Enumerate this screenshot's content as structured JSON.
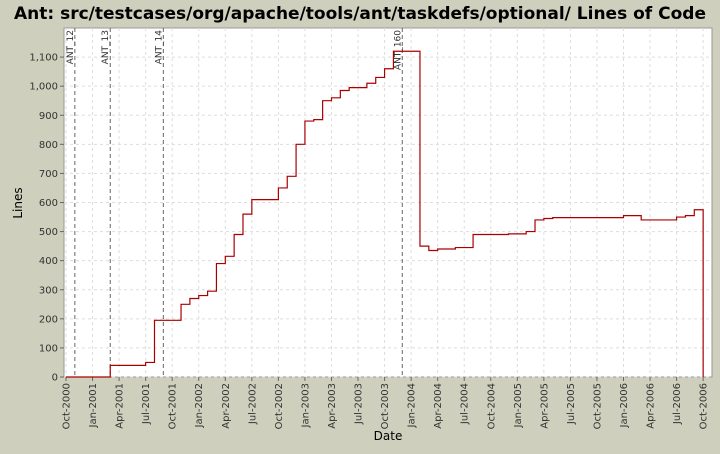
{
  "chart_data": {
    "type": "step",
    "title": "Ant: src/testcases/org/apache/tools/ant/taskdefs/optional/ Lines of Code",
    "xlabel": "Date",
    "ylabel": "Lines",
    "xlim": [
      "2000-10",
      "2006-11"
    ],
    "ylim": [
      0,
      1200
    ],
    "yticks": [
      0,
      100,
      200,
      300,
      400,
      500,
      600,
      700,
      800,
      900,
      {
        "value": 1000,
        "label": "1,000"
      },
      {
        "value": 1100,
        "label": "1,100"
      }
    ],
    "xticks": [
      {
        "value": "2000-10",
        "label": "Oct-2000"
      },
      {
        "value": "2001-01",
        "label": "Jan-2001"
      },
      {
        "value": "2001-04",
        "label": "Apr-2001"
      },
      {
        "value": "2001-07",
        "label": "Jul-2001"
      },
      {
        "value": "2001-10",
        "label": "Oct-2001"
      },
      {
        "value": "2002-01",
        "label": "Jan-2002"
      },
      {
        "value": "2002-04",
        "label": "Apr-2002"
      },
      {
        "value": "2002-07",
        "label": "Jul-2002"
      },
      {
        "value": "2002-10",
        "label": "Oct-2002"
      },
      {
        "value": "2003-01",
        "label": "Jan-2003"
      },
      {
        "value": "2003-04",
        "label": "Apr-2003"
      },
      {
        "value": "2003-07",
        "label": "Jul-2003"
      },
      {
        "value": "2003-10",
        "label": "Oct-2003"
      },
      {
        "value": "2004-01",
        "label": "Jan-2004"
      },
      {
        "value": "2004-04",
        "label": "Apr-2004"
      },
      {
        "value": "2004-07",
        "label": "Jul-2004"
      },
      {
        "value": "2004-10",
        "label": "Oct-2004"
      },
      {
        "value": "2005-01",
        "label": "Jan-2005"
      },
      {
        "value": "2005-04",
        "label": "Apr-2005"
      },
      {
        "value": "2005-07",
        "label": "Jul-2005"
      },
      {
        "value": "2005-10",
        "label": "Oct-2005"
      },
      {
        "value": "2006-01",
        "label": "Jan-2006"
      },
      {
        "value": "2006-04",
        "label": "Apr-2006"
      },
      {
        "value": "2006-07",
        "label": "Jul-2006"
      },
      {
        "value": "2006-10",
        "label": "Oct-2006"
      }
    ],
    "grid": true,
    "annotations": [
      {
        "x": "2000-11",
        "label": "ANT_12"
      },
      {
        "x": "2001-03",
        "label": "ANT_13"
      },
      {
        "x": "2001-09",
        "label": "ANT_14"
      },
      {
        "x": "2003-12",
        "label": "ANT_160"
      }
    ],
    "series": [
      {
        "name": "Lines",
        "color": "#aa0000",
        "x": [
          "2000-10",
          "2001-03",
          "2001-07",
          "2001-08",
          "2001-11",
          "2001-12",
          "2002-01",
          "2002-02",
          "2002-03",
          "2002-04",
          "2002-05",
          "2002-06",
          "2002-07",
          "2002-10",
          "2002-11",
          "2002-12",
          "2003-01",
          "2003-02",
          "2003-03",
          "2003-04",
          "2003-05",
          "2003-06",
          "2003-08",
          "2003-09",
          "2003-10",
          "2003-11",
          "2004-02",
          "2004-03",
          "2004-04",
          "2004-06",
          "2004-08",
          "2004-12",
          "2005-02",
          "2005-03",
          "2005-04",
          "2005-05",
          "2006-01",
          "2006-03",
          "2006-07",
          "2006-08",
          "2006-09",
          "2006-10"
        ],
        "values": [
          0,
          40,
          50,
          195,
          250,
          270,
          280,
          295,
          390,
          415,
          490,
          560,
          610,
          650,
          690,
          800,
          880,
          885,
          950,
          960,
          985,
          995,
          1010,
          1030,
          1060,
          1120,
          450,
          435,
          440,
          445,
          490,
          492,
          500,
          540,
          545,
          548,
          555,
          540,
          550,
          555,
          575,
          0
        ]
      }
    ]
  }
}
